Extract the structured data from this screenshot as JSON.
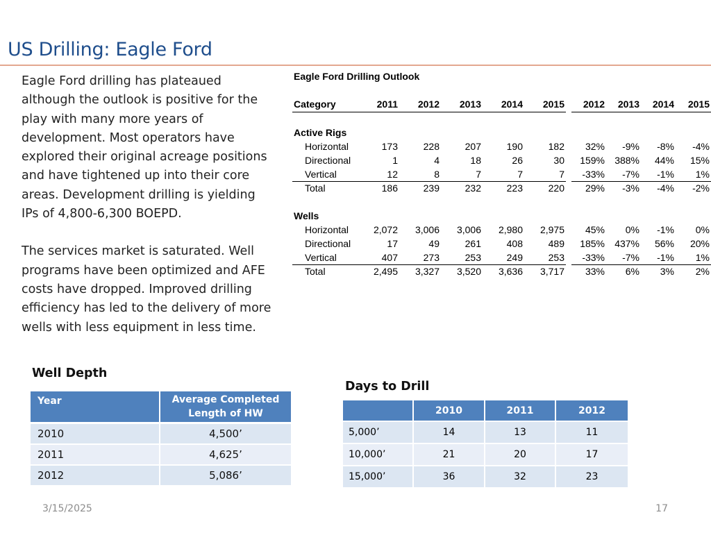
{
  "slide": {
    "title": "US Drilling: Eagle Ford",
    "paragraphs": [
      "Eagle Ford drilling has plateaued although the outlook is positive for the play with many more years of development.  Most operators have explored their original acreage positions and have tightened up into their core areas. Development drilling is yielding IPs of 4,800-6,300 BOEPD.",
      "The services market is saturated. Well programs have been optimized and AFE costs have dropped. Improved drilling efficiency has led to the delivery of more wells with less equipment in less time."
    ],
    "footer_date": "3/15/2025",
    "page_number": "17"
  },
  "outlook": {
    "title": "Eagle Ford Drilling Outlook",
    "header": {
      "category": "Category",
      "years": [
        "2011",
        "2012",
        "2013",
        "2014",
        "2015"
      ],
      "change_years": [
        "2012",
        "2013",
        "2014",
        "2015"
      ]
    },
    "sections": [
      {
        "label": "Active Rigs",
        "rows": [
          {
            "name": "Horizontal",
            "values": [
              "173",
              "228",
              "207",
              "190",
              "182"
            ],
            "changes": [
              "32%",
              "-9%",
              "-8%",
              "-4%"
            ]
          },
          {
            "name": "Directional",
            "values": [
              "1",
              "4",
              "18",
              "26",
              "30"
            ],
            "changes": [
              "159%",
              "388%",
              "44%",
              "15%"
            ]
          },
          {
            "name": "Vertical",
            "values": [
              "12",
              "8",
              "7",
              "7",
              "7"
            ],
            "changes": [
              "-33%",
              "-7%",
              "-1%",
              "1%"
            ]
          },
          {
            "name": "Total",
            "values": [
              "186",
              "239",
              "232",
              "223",
              "220"
            ],
            "changes": [
              "29%",
              "-3%",
              "-4%",
              "-2%"
            ]
          }
        ]
      },
      {
        "label": "Wells",
        "rows": [
          {
            "name": "Horizontal",
            "values": [
              "2,072",
              "3,006",
              "3,006",
              "2,980",
              "2,975"
            ],
            "changes": [
              "45%",
              "0%",
              "-1%",
              "0%"
            ]
          },
          {
            "name": "Directional",
            "values": [
              "17",
              "49",
              "261",
              "408",
              "489"
            ],
            "changes": [
              "185%",
              "437%",
              "56%",
              "20%"
            ]
          },
          {
            "name": "Vertical",
            "values": [
              "407",
              "273",
              "253",
              "249",
              "253"
            ],
            "changes": [
              "-33%",
              "-7%",
              "-1%",
              "1%"
            ]
          },
          {
            "name": "Total",
            "values": [
              "2,495",
              "3,327",
              "3,520",
              "3,636",
              "3,717"
            ],
            "changes": [
              "33%",
              "6%",
              "3%",
              "2%"
            ]
          }
        ]
      }
    ]
  },
  "well_depth": {
    "label": "Well Depth",
    "headers": [
      "Year",
      "Average Completed Length of HW"
    ],
    "rows": [
      [
        "2010",
        "4,500’"
      ],
      [
        "2011",
        "4,625’"
      ],
      [
        "2012",
        "5,086’"
      ]
    ]
  },
  "days_to_drill": {
    "label": "Days to Drill",
    "headers": [
      "",
      "2010",
      "2011",
      "2012"
    ],
    "rows": [
      [
        "5,000’",
        "14",
        "13",
        "11"
      ],
      [
        "10,000’",
        "21",
        "20",
        "17"
      ],
      [
        "15,000’",
        "36",
        "32",
        "23"
      ]
    ]
  },
  "colors": {
    "title": "#1f4e8c",
    "rule": "#e3a78f",
    "table_header": "#4f81bd",
    "table_row": "#dce6f2",
    "table_row_alt": "#e9eef7"
  }
}
